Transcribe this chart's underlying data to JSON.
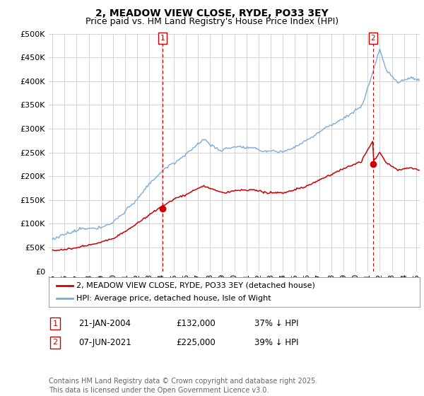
{
  "title": "2, MEADOW VIEW CLOSE, RYDE, PO33 3EY",
  "subtitle": "Price paid vs. HM Land Registry's House Price Index (HPI)",
  "ylim": [
    0,
    500000
  ],
  "ytick_values": [
    0,
    50000,
    100000,
    150000,
    200000,
    250000,
    300000,
    350000,
    400000,
    450000,
    500000
  ],
  "xlim_start": 1994.7,
  "xlim_end": 2025.3,
  "marker1_x": 2004.07,
  "marker1_y": 132000,
  "marker2_x": 2021.44,
  "marker2_y": 225000,
  "red_color": "#cc0000",
  "blue_color": "#7aaddc",
  "grid_color": "#cccccc",
  "background_color": "#ffffff",
  "legend_address": "2, MEADOW VIEW CLOSE, RYDE, PO33 3EY (detached house)",
  "legend_hpi": "HPI: Average price, detached house, Isle of Wight",
  "annotation1_date": "21-JAN-2004",
  "annotation1_price": "£132,000",
  "annotation1_hpi": "37% ↓ HPI",
  "annotation2_date": "07-JUN-2021",
  "annotation2_price": "£225,000",
  "annotation2_hpi": "39% ↓ HPI",
  "footnote": "Contains HM Land Registry data © Crown copyright and database right 2025.\nThis data is licensed under the Open Government Licence v3.0.",
  "title_fontsize": 10,
  "subtitle_fontsize": 9,
  "tick_fontsize": 8,
  "legend_fontsize": 8,
  "annotation_fontsize": 8.5,
  "footnote_fontsize": 7
}
